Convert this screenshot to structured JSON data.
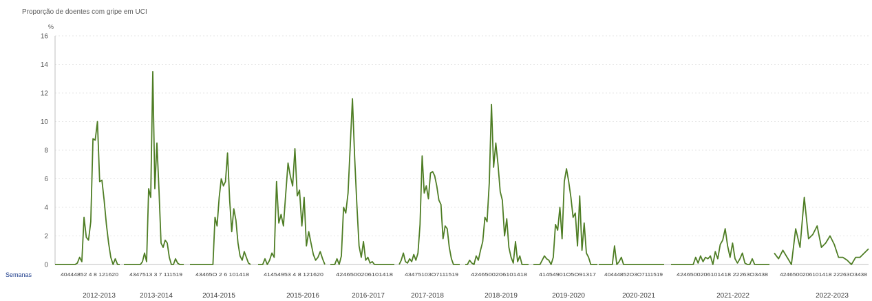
{
  "chart_data": {
    "type": "line",
    "title": "Proporção de doentes com gripe em UCI",
    "ylabel": "%",
    "xlabel": "Semanas",
    "ylim": [
      0,
      16
    ],
    "yticks": [
      0,
      2,
      4,
      6,
      8,
      10,
      12,
      14,
      16
    ],
    "grid": true,
    "line_color": "#4e7d24",
    "week_tick_labels": [
      "40444852 4  8 121620",
      "4347513  3  7 111519",
      "43465O 2  6 101418",
      "41454953 4  8 121620",
      "4246500206101418",
      "43475103O7111519",
      "4246500206101418",
      "41454901O5O91317",
      "40444852O3O7111519",
      "4246500206101418 22263O3438",
      "4246500206101418 22263O3438"
    ],
    "seasons": [
      {
        "label": "2012-2013",
        "values": [
          0,
          0,
          0,
          0,
          0,
          0,
          0,
          0,
          0,
          0,
          0.1,
          0.5,
          0.2,
          3.3,
          1.9,
          1.7,
          3.0,
          8.8,
          8.7,
          10.0,
          5.8,
          5.9,
          4.5,
          2.8,
          1.5,
          0.5,
          0,
          0.4,
          0,
          0
        ]
      },
      {
        "label": "2013-2014",
        "values": [
          0,
          0,
          0,
          0,
          0,
          0,
          0,
          0,
          0,
          0.2,
          0.8,
          0.2,
          5.3,
          4.7,
          13.5,
          5.3,
          8.5,
          5.2,
          1.5,
          1.2,
          1.7,
          1.5,
          0.5,
          0,
          0,
          0.4,
          0.1,
          0,
          0,
          0
        ]
      },
      {
        "label": "2014-2015",
        "values": [
          0,
          0,
          0,
          0,
          0,
          0,
          0,
          0,
          0,
          0,
          0,
          0,
          3.3,
          2.7,
          4.7,
          6.0,
          5.5,
          5.8,
          7.8,
          4.5,
          2.3,
          3.9,
          3.1,
          1.5,
          0.6,
          0.3,
          0.9,
          0.5,
          0.1,
          0
        ]
      },
      {
        "label": "2015-2016",
        "values": [
          0,
          0,
          0,
          0.4,
          0,
          0.3,
          0.8,
          0.5,
          5.8,
          2.9,
          3.5,
          2.7,
          4.9,
          7.1,
          6.2,
          5.5,
          8.1,
          4.8,
          5.2,
          2.7,
          4.7,
          1.3,
          2.3,
          1.5,
          0.7,
          0.3,
          0.5,
          0.9,
          0.4,
          0
        ]
      },
      {
        "label": "2016-2017",
        "values": [
          0,
          0,
          0,
          0.4,
          0,
          0.6,
          4.0,
          3.6,
          5.0,
          8.3,
          11.6,
          7.5,
          4.2,
          1.3,
          0.5,
          1.6,
          0.3,
          0.5,
          0.1,
          0.2,
          0,
          0,
          0,
          0,
          0,
          0,
          0,
          0,
          0,
          0
        ]
      },
      {
        "label": "2017-2018",
        "values": [
          0,
          0.3,
          0.8,
          0.2,
          0.1,
          0.4,
          0.2,
          0.7,
          0.3,
          0.8,
          2.8,
          7.6,
          5.0,
          5.5,
          4.6,
          6.4,
          6.5,
          6.2,
          5.5,
          4.5,
          4.2,
          1.8,
          2.7,
          2.5,
          1.2,
          0.4,
          0,
          0,
          0,
          0
        ]
      },
      {
        "label": "2018-2019",
        "values": [
          0,
          0,
          0.3,
          0.1,
          0,
          0.6,
          0.3,
          1.0,
          1.6,
          3.3,
          3.0,
          5.7,
          11.2,
          6.8,
          8.5,
          7.0,
          5.1,
          4.5,
          2.0,
          3.2,
          1.2,
          0.5,
          0.1,
          1.6,
          0.2,
          0.6,
          0,
          0,
          0,
          0
        ]
      },
      {
        "label": "2019-2020",
        "values": [
          0,
          0,
          0,
          0,
          0.3,
          0.6,
          0.4,
          0.3,
          0,
          0.5,
          2.8,
          2.4,
          4.0,
          1.8,
          5.8,
          6.7,
          5.8,
          4.7,
          3.3,
          3.6,
          1.3,
          4.8,
          1.0,
          2.9,
          0.8,
          0.5,
          0,
          0,
          0,
          0
        ]
      },
      {
        "label": "2020-2021",
        "values": [
          0,
          0,
          0,
          0,
          0,
          0,
          0,
          1.3,
          0,
          0.2,
          0.5,
          0,
          0,
          0,
          0,
          0,
          0,
          0,
          0,
          0,
          0,
          0,
          0,
          0,
          0,
          0,
          0,
          0,
          0,
          0
        ]
      },
      {
        "label": "2021-2022",
        "values": [
          0,
          0,
          0,
          0,
          0,
          0,
          0,
          0,
          0,
          0,
          0.5,
          0.1,
          0.6,
          0.2,
          0.5,
          0.4,
          0.6,
          0,
          0.9,
          0.4,
          1.4,
          1.7,
          2.5,
          1.3,
          0.5,
          1.5,
          0.4,
          0.1,
          0.4,
          0.8,
          0.1,
          0,
          0,
          0.4,
          0,
          0,
          0,
          0,
          0,
          0,
          0
        ]
      },
      {
        "label": "2022-2023",
        "values": [
          0.8,
          0.4,
          1.0,
          0.5,
          0,
          2.5,
          1.2,
          4.7,
          1.8,
          2.1,
          2.7,
          1.2,
          1.5,
          2.0,
          1.4,
          0.5,
          0.5,
          0.3,
          0,
          0.5,
          0.5,
          0.8,
          1.1
        ]
      }
    ]
  }
}
